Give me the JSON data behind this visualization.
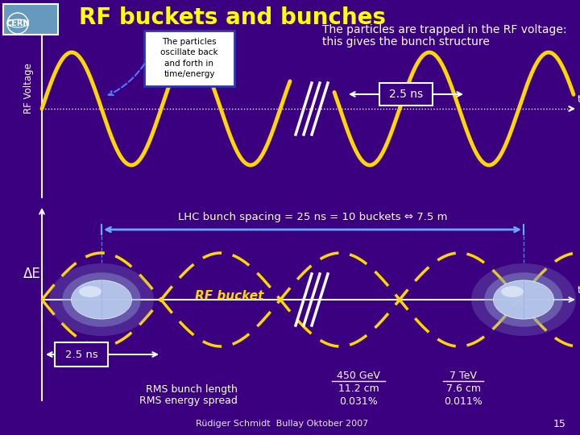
{
  "title": "RF buckets and bunches",
  "title_color": "#FFFF00",
  "bg_color": "#3B0080",
  "top_panel_text1": "The particles are trapped in the RF voltage:",
  "top_panel_text2": "this gives the bunch structure",
  "box_text": "The particles\noscillate back\nand forth in\ntime/energy",
  "rf_voltage_label": "RF Voltage",
  "delta_e_label": "ΔE",
  "time_label": "time",
  "spacing_label": "LHC bunch spacing = 25 ns = 10 buckets ⇔ 7.5 m",
  "rf_bucket_label": "RF bucket",
  "ns_label_top": "2.5 ns",
  "ns_label_bottom": "2.5 ns",
  "gev_label": "450 GeV",
  "tev_label": "7 TeV",
  "rms_length_label": "RMS bunch length",
  "rms_spread_label": "RMS energy spread",
  "rms_length_gev": "11.2 cm",
  "rms_length_tev": "7.6 cm",
  "rms_spread_gev": "0.031%",
  "rms_spread_tev": "0.011%",
  "footer": "Rüdiger Schmidt  Bullay Oktober 2007",
  "page_num": "15",
  "wave_color": "#FFD700",
  "dashed_color": "#FFD700",
  "arrow_color": "#FFFFFF",
  "text_color": "#FFFFFF",
  "axis_color": "#FFFFFF",
  "box_fill": "#FFFFFF",
  "box_text_color": "#000000",
  "break_color": "#FFFFFF",
  "cern_bg": "#6699BB",
  "bunch_color": "#8899CC",
  "bunch_inner": "#BBCCEE",
  "spacing_arrow_color": "#66AAFF"
}
